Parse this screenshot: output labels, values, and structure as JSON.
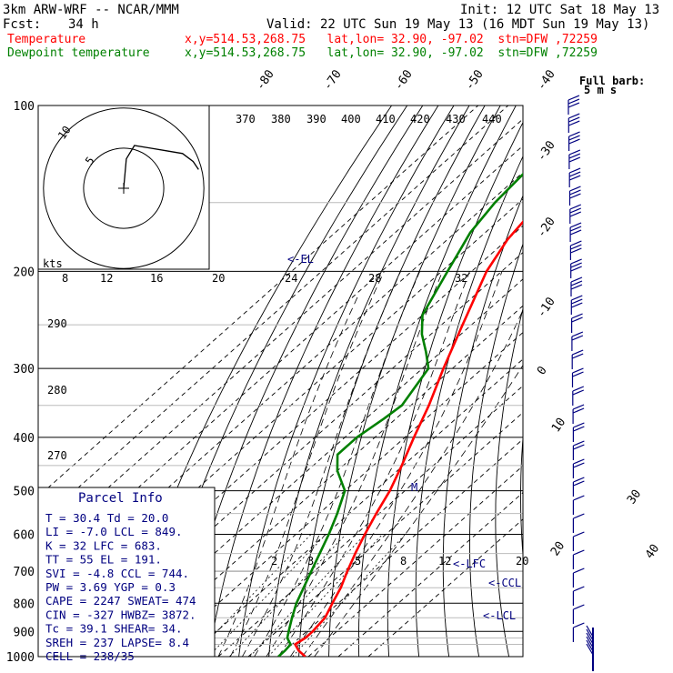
{
  "header": {
    "model": "3km ARW-WRF -- NCAR/MMM",
    "init": "Init: 12 UTC Sat 18 May 13",
    "fcst_label": "Fcst:",
    "fcst_value": "34 h",
    "valid": "Valid: 22 UTC Sun 19 May 13 (16 MDT Sun 19 May 13)",
    "temp_name": "Temperature",
    "temp_info": "x,y=514.53,268.75   lat,lon= 32.90, -97.02  stn=DFW ,72259",
    "dew_name": "Dewpoint temperature",
    "dew_info": "x,y=514.53,268.75   lat,lon= 32.90, -97.02  stn=DFW ,72259"
  },
  "barb_legend": {
    "line1": "Full barb:",
    "line2": "5 m s"
  },
  "hodograph": {
    "unit": "kts",
    "ring_labels": [
      "5",
      "10"
    ]
  },
  "parcel_info": {
    "title": "Parcel Info",
    "rows": [
      "T  =   30.4  Td =  20.0",
      "LI =   -7.0  LCL =  849.",
      "K  =     32  LFC =  683.",
      "TT =     55  EL  =  191.",
      "SVI =  -4.8  CCL =  744.",
      "PW =   3.69  YGP =   0.3",
      "CAPE =  2247  SWEAT=  474",
      "CIN =  -327  HWBZ= 3872.",
      "Tc =   39.1  SHEAR=  34.",
      "SREH =  237  LAPSE=  8.4",
      "CELL = 238/35"
    ]
  },
  "level_markers": {
    "el": "<-EL",
    "lfc": "<-LFC",
    "ccl": "<-CCL",
    "lcl": "<-LCL",
    "m": "M"
  },
  "chart_data": {
    "type": "line",
    "subtype": "skew-T log-p",
    "pressure_range": [
      1000,
      100
    ],
    "pressure_labels": [
      "100",
      "200",
      "300",
      "400",
      "500",
      "600",
      "700",
      "800",
      "900",
      "1000"
    ],
    "isotherm_labels": [
      "-80",
      "-70",
      "-60",
      "-50",
      "-40",
      "-30",
      "-20",
      "-10",
      "0",
      "10",
      "20",
      "30",
      "40"
    ],
    "theta_labels": [
      "370",
      "380",
      "390",
      "400",
      "410",
      "420",
      "430",
      "440",
      "290",
      "280",
      "270"
    ],
    "mixing_ratio_labels": [
      "8",
      "12",
      "16",
      "20",
      "24",
      "28",
      "32",
      "2",
      "3",
      "5",
      "8",
      "12",
      "20"
    ],
    "series": [
      {
        "name": "Temperature",
        "color": "#ff0000",
        "points": [
          [
            1000,
            29
          ],
          [
            975,
            24.5
          ],
          [
            950,
            21
          ],
          [
            925,
            22
          ],
          [
            900,
            22
          ],
          [
            850,
            21
          ],
          [
            800,
            18
          ],
          [
            750,
            15
          ],
          [
            700,
            11
          ],
          [
            650,
            7
          ],
          [
            600,
            3
          ],
          [
            550,
            -1
          ],
          [
            500,
            -5
          ],
          [
            450,
            -10.5
          ],
          [
            400,
            -17
          ],
          [
            350,
            -24
          ],
          [
            300,
            -33
          ],
          [
            250,
            -43
          ],
          [
            200,
            -55
          ],
          [
            175,
            -60
          ],
          [
            150,
            -63
          ],
          [
            125,
            -64
          ],
          [
            110,
            -64
          ],
          [
            100,
            -64
          ]
        ]
      },
      {
        "name": "Dewpoint temperature",
        "color": "#008000",
        "points": [
          [
            1000,
            20
          ],
          [
            975,
            20
          ],
          [
            950,
            19.5
          ],
          [
            925,
            16
          ],
          [
            900,
            14
          ],
          [
            850,
            10
          ],
          [
            800,
            6
          ],
          [
            700,
            -1
          ],
          [
            600,
            -9
          ],
          [
            550,
            -14
          ],
          [
            500,
            -20
          ],
          [
            460,
            -30
          ],
          [
            430,
            -36
          ],
          [
            400,
            -36
          ],
          [
            370,
            -34
          ],
          [
            350,
            -33
          ],
          [
            300,
            -38
          ],
          [
            280,
            -45
          ],
          [
            260,
            -53
          ],
          [
            240,
            -60
          ],
          [
            200,
            -68
          ],
          [
            170,
            -75
          ],
          [
            150,
            -78
          ],
          [
            125,
            -80
          ],
          [
            110,
            -82
          ],
          [
            100,
            -84
          ]
        ]
      }
    ],
    "hodograph_trace": [
      [
        0,
        0
      ],
      [
        0.5,
        5.5
      ],
      [
        2,
        8
      ],
      [
        5,
        7.5
      ],
      [
        8,
        7
      ],
      [
        11,
        6.5
      ],
      [
        13,
        5
      ],
      [
        14,
        3.5
      ]
    ],
    "wind_barb_count": 30
  }
}
